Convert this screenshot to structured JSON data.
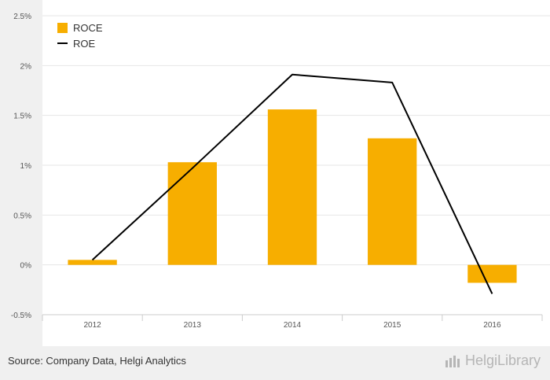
{
  "chart_data": {
    "type": "bar",
    "categories": [
      "2012",
      "2013",
      "2014",
      "2015",
      "2016"
    ],
    "series": [
      {
        "name": "ROCE",
        "type": "bar",
        "color": "#f7ae00",
        "values": [
          0.05,
          1.03,
          1.56,
          1.27,
          -0.18
        ]
      },
      {
        "name": "ROE",
        "type": "line",
        "color": "#000000",
        "values": [
          0.05,
          0.97,
          1.91,
          1.83,
          -0.29
        ]
      }
    ],
    "ylim": [
      -0.5,
      2.5
    ],
    "yticks": [
      -0.5,
      0,
      0.5,
      1,
      1.5,
      2,
      2.5
    ],
    "ytick_labels": [
      "-0.5%",
      "0%",
      "0.5%",
      "1%",
      "1.5%",
      "2%",
      "2.5%"
    ],
    "grid": true,
    "legend": "top-left"
  },
  "footer": {
    "source": "Source: Company Data, Helgi Analytics",
    "brand": "HelgiLibrary"
  }
}
